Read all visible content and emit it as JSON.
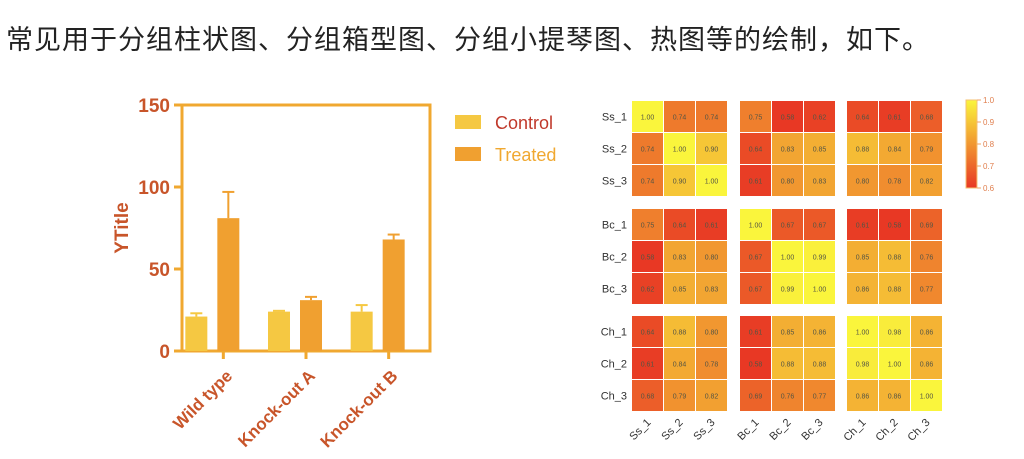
{
  "page_title": "常见用于分组柱状图、分组箱型图、分组小提琴图、热图等的绘制，如下。",
  "chart_data": [
    {
      "type": "bar",
      "title": "",
      "xlabel": "",
      "ylabel": "YTitle",
      "ylim": [
        0,
        150
      ],
      "yticks": [
        "0",
        "50",
        "100",
        "150"
      ],
      "categories": [
        "Wild type",
        "Knock-out A",
        "Knock-out B"
      ],
      "series": [
        {
          "name": "Control",
          "color": "#f5c842",
          "values": [
            21,
            24,
            24
          ],
          "error_upper": [
            23,
            24.5,
            28
          ]
        },
        {
          "name": "Treated",
          "color": "#f0a030",
          "values": [
            81,
            31,
            68
          ],
          "error_upper": [
            97,
            33,
            71
          ]
        }
      ],
      "legend": "top-right"
    },
    {
      "type": "heatmap",
      "rows": [
        "Ss_1",
        "Ss_2",
        "Ss_3",
        "Bc_1",
        "Bc_2",
        "Bc_3",
        "Ch_1",
        "Ch_2",
        "Ch_3"
      ],
      "cols": [
        "Ss_1",
        "Ss_2",
        "Ss_3",
        "Bc_1",
        "Bc_2",
        "Bc_3",
        "Ch_1",
        "Ch_2",
        "Ch_3"
      ],
      "values": [
        [
          1.0,
          0.74,
          0.74,
          0.75,
          0.58,
          0.62,
          0.64,
          0.61,
          0.68
        ],
        [
          0.74,
          1.0,
          0.9,
          0.64,
          0.83,
          0.85,
          0.88,
          0.84,
          0.79
        ],
        [
          0.74,
          0.9,
          1.0,
          0.61,
          0.8,
          0.83,
          0.8,
          0.78,
          0.82
        ],
        [
          0.75,
          0.64,
          0.61,
          1.0,
          0.67,
          0.67,
          0.61,
          0.58,
          0.69
        ],
        [
          0.58,
          0.83,
          0.8,
          0.67,
          1.0,
          0.99,
          0.85,
          0.88,
          0.76
        ],
        [
          0.62,
          0.85,
          0.83,
          0.67,
          0.99,
          1.0,
          0.86,
          0.88,
          0.77
        ],
        [
          0.64,
          0.88,
          0.8,
          0.61,
          0.85,
          0.86,
          1.0,
          0.98,
          0.86
        ],
        [
          0.61,
          0.84,
          0.78,
          0.58,
          0.88,
          0.88,
          0.98,
          1.0,
          0.86
        ],
        [
          0.68,
          0.79,
          0.82,
          0.69,
          0.76,
          0.77,
          0.86,
          0.86,
          1.0
        ]
      ],
      "color_range": [
        0.6,
        1.0
      ],
      "colorbar_ticks": [
        "1.0",
        "0.9",
        "0.8",
        "0.7",
        "0.6"
      ],
      "legend": "right"
    }
  ]
}
